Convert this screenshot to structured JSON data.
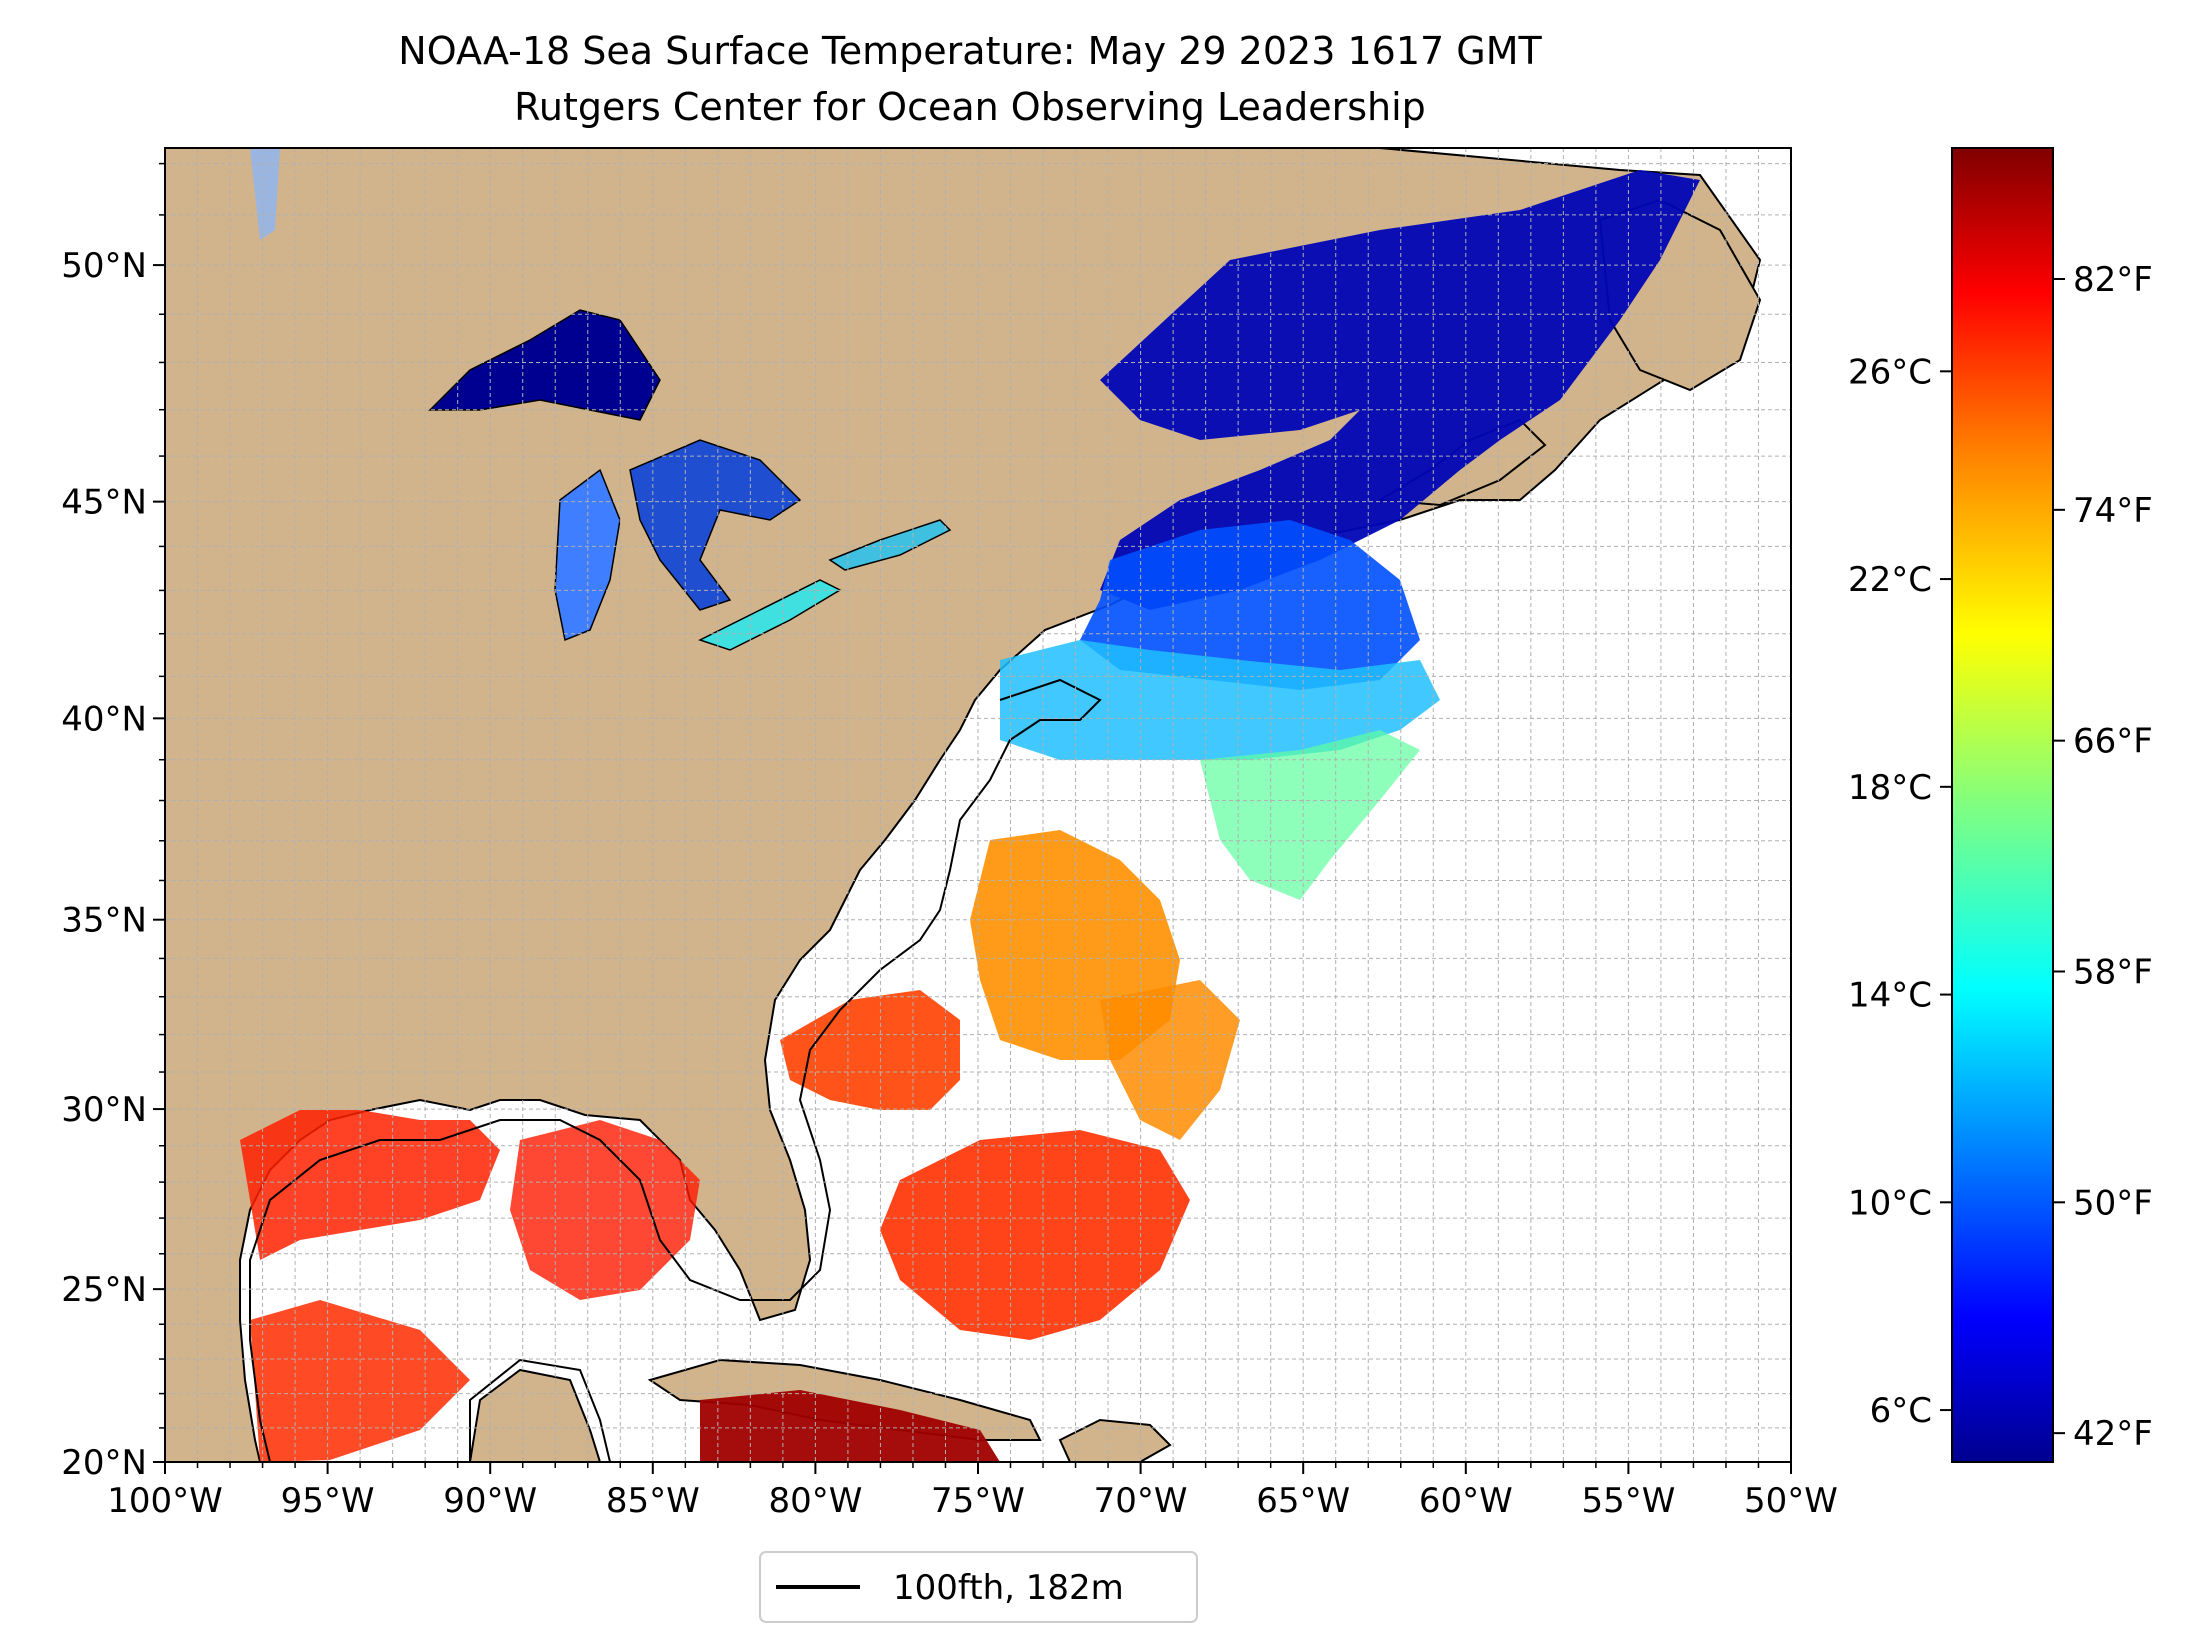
{
  "title": "NOAA-18 Sea Surface Temperature: May 29 2023 1617 GMT",
  "subtitle": "Rutgers Center for Ocean Observing Leadership",
  "lon_ticks": [
    {
      "value": -100,
      "label": "100°W"
    },
    {
      "value": -95,
      "label": "95°W"
    },
    {
      "value": -90,
      "label": "90°W"
    },
    {
      "value": -85,
      "label": "85°W"
    },
    {
      "value": -80,
      "label": "80°W"
    },
    {
      "value": -75,
      "label": "75°W"
    },
    {
      "value": -70,
      "label": "70°W"
    },
    {
      "value": -65,
      "label": "65°W"
    },
    {
      "value": -60,
      "label": "60°W"
    },
    {
      "value": -55,
      "label": "55°W"
    },
    {
      "value": -50,
      "label": "50°W"
    }
  ],
  "lat_ticks": [
    {
      "value": 20,
      "label": "20°N"
    },
    {
      "value": 25,
      "label": "25°N"
    },
    {
      "value": 30,
      "label": "30°N"
    },
    {
      "value": 35,
      "label": "35°N"
    },
    {
      "value": 40,
      "label": "40°N"
    },
    {
      "value": 45,
      "label": "45°N"
    },
    {
      "value": 50,
      "label": "50°N"
    }
  ],
  "colorbar": {
    "celsius_ticks": [
      {
        "value": 6,
        "label": "6°C"
      },
      {
        "value": 10,
        "label": "10°C"
      },
      {
        "value": 14,
        "label": "14°C"
      },
      {
        "value": 18,
        "label": "18°C"
      },
      {
        "value": 22,
        "label": "22°C"
      },
      {
        "value": 26,
        "label": "26°C"
      }
    ],
    "fahrenheit_ticks": [
      {
        "value": 42,
        "label": "42°F"
      },
      {
        "value": 50,
        "label": "50°F"
      },
      {
        "value": 58,
        "label": "58°F"
      },
      {
        "value": 66,
        "label": "66°F"
      },
      {
        "value": 74,
        "label": "74°F"
      },
      {
        "value": 82,
        "label": "82°F"
      }
    ],
    "colormap": [
      "#00008f",
      "#0000ff",
      "#0080ff",
      "#00ffff",
      "#80ff80",
      "#ffff00",
      "#ff8000",
      "#ff0000",
      "#800000"
    ]
  },
  "legend": {
    "label": "100fth, 182m",
    "line_color": "#000000"
  },
  "colors": {
    "land": "#d2b48c",
    "lake_ice": "#9ab5e0",
    "grid": "#b0b0b0"
  }
}
